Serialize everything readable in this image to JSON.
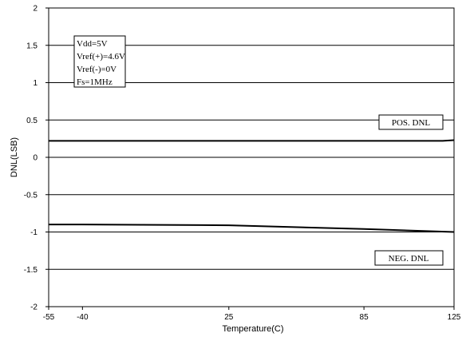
{
  "chart_data": {
    "type": "line",
    "title": "",
    "xlabel": "Temperature(C)",
    "ylabel": "DNL(LSB)",
    "xlim": [
      -55,
      125
    ],
    "ylim": [
      -2,
      2
    ],
    "x_ticks": [
      -55,
      -40,
      25,
      85,
      125
    ],
    "y_ticks": [
      -2,
      -1.5,
      -1,
      -0.5,
      0,
      0.5,
      1,
      1.5,
      2
    ],
    "y_tick_labels": [
      "-2",
      "-1.5",
      "-1",
      "-0.5",
      "0",
      "0.5",
      "1",
      "1.5",
      "2"
    ],
    "grid": "horizontal",
    "conditions": [
      "Vdd=5V",
      "Vref(+)=4.6V",
      "Vref(-)=0V",
      "Fs=1MHz"
    ],
    "series": [
      {
        "name": "POS. DNL",
        "x": [
          -55,
          -40,
          25,
          85,
          120,
          125
        ],
        "y": [
          0.22,
          0.22,
          0.22,
          0.22,
          0.22,
          0.23
        ]
      },
      {
        "name": "NEG. DNL",
        "x": [
          -55,
          -40,
          25,
          85,
          125
        ],
        "y": [
          -0.9,
          -0.9,
          -0.91,
          -0.96,
          -1.0
        ]
      }
    ]
  }
}
